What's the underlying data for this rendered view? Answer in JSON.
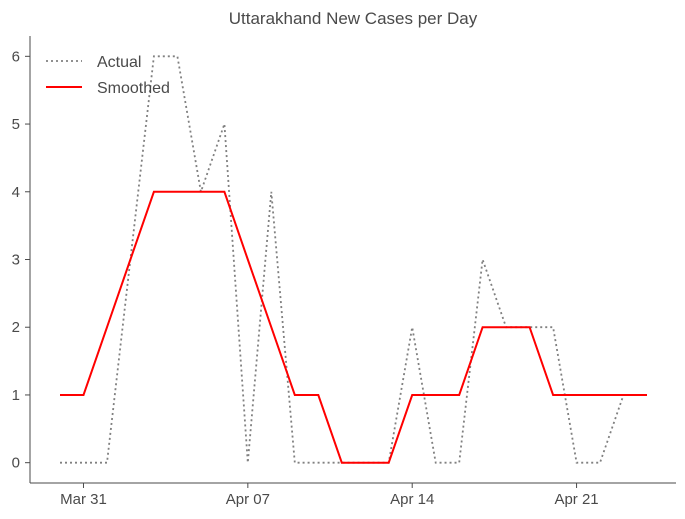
{
  "chart_data": {
    "type": "line",
    "title": "Uttarakhand New Cases per Day",
    "xlabel": "",
    "ylabel": "",
    "x": [
      "Mar 30",
      "Mar 31",
      "Apr 01",
      "Apr 02",
      "Apr 03",
      "Apr 04",
      "Apr 05",
      "Apr 06",
      "Apr 07",
      "Apr 08",
      "Apr 09",
      "Apr 10",
      "Apr 11",
      "Apr 12",
      "Apr 13",
      "Apr 14",
      "Apr 15",
      "Apr 16",
      "Apr 17",
      "Apr 18",
      "Apr 19",
      "Apr 20",
      "Apr 21",
      "Apr 22",
      "Apr 23",
      "Apr 24"
    ],
    "x_ticks": [
      "Mar 31",
      "Apr 07",
      "Apr 14",
      "Apr 21"
    ],
    "y_ticks": [
      0,
      1,
      2,
      3,
      4,
      5,
      6
    ],
    "ylim": [
      -0.3,
      6.3
    ],
    "series": [
      {
        "name": "Actual",
        "style": "dotted",
        "color": "#808080",
        "values": [
          0,
          0,
          0,
          3,
          6,
          6,
          4,
          5,
          0,
          4,
          0,
          0,
          0,
          0,
          0,
          2,
          0,
          0,
          3,
          2,
          2,
          2,
          0,
          0,
          1,
          1
        ]
      },
      {
        "name": "Smoothed",
        "style": "solid",
        "color": "#ff0000",
        "values": [
          1,
          1,
          2,
          3,
          4,
          4,
          4,
          4,
          3,
          2,
          1,
          1,
          0,
          0,
          0,
          1,
          1,
          1,
          2,
          2,
          2,
          1,
          1,
          1,
          1,
          1
        ]
      }
    ],
    "legend_position": "top-left",
    "grid": false
  }
}
